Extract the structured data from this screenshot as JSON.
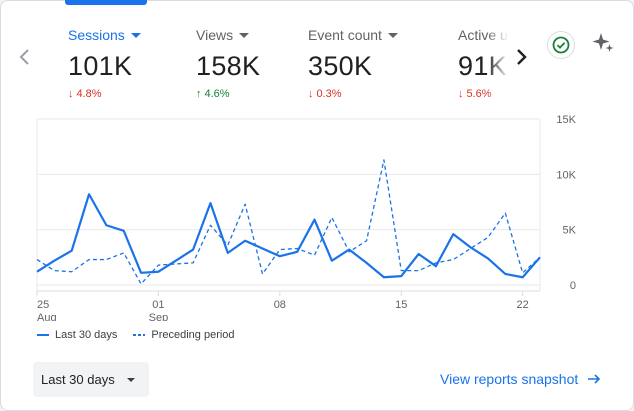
{
  "metrics": [
    {
      "label": "Sessions",
      "value": "101K",
      "delta": "4.8%",
      "direction": "down",
      "active": true
    },
    {
      "label": "Views",
      "value": "158K",
      "delta": "4.6%",
      "direction": "up",
      "active": false
    },
    {
      "label": "Event count",
      "value": "350K",
      "delta": "0.3%",
      "direction": "down",
      "active": false
    },
    {
      "label": "Active u",
      "value": "91K",
      "delta": "5.6%",
      "direction": "down",
      "active": false
    }
  ],
  "icons": {
    "prev": "chevron-left-icon",
    "next": "chevron-right-icon",
    "check": "check-circle-icon",
    "sparkle": "sparkle-icon",
    "arrow": "arrow-right-icon"
  },
  "colors": {
    "accent": "#1a73e8",
    "down": "#d93025",
    "up": "#188038",
    "check": "#188038"
  },
  "chart_data": {
    "type": "line",
    "x": [
      "Aug 25",
      "Aug 26",
      "Aug 27",
      "Aug 28",
      "Aug 29",
      "Aug 30",
      "Aug 31",
      "Sep 01",
      "Sep 02",
      "Sep 03",
      "Sep 04",
      "Sep 05",
      "Sep 06",
      "Sep 07",
      "Sep 08",
      "Sep 09",
      "Sep 10",
      "Sep 11",
      "Sep 12",
      "Sep 13",
      "Sep 14",
      "Sep 15",
      "Sep 16",
      "Sep 17",
      "Sep 18",
      "Sep 19",
      "Sep 20",
      "Sep 21",
      "Sep 22",
      "Sep 23"
    ],
    "series": [
      {
        "name": "Last 30 days",
        "style": "solid",
        "values": [
          1200,
          2200,
          3100,
          8200,
          5400,
          4900,
          1100,
          1200,
          2200,
          3200,
          7400,
          2900,
          4000,
          3300,
          2600,
          3000,
          5900,
          2200,
          3200,
          2000,
          700,
          800,
          2800,
          1700,
          4600,
          3400,
          2400,
          1000,
          700,
          2500
        ]
      },
      {
        "name": "Preceding period",
        "style": "dashed",
        "values": [
          2300,
          1300,
          1200,
          2300,
          2300,
          2900,
          100,
          1800,
          1900,
          2000,
          5400,
          3600,
          7300,
          1000,
          3200,
          3300,
          2700,
          6100,
          3000,
          4000,
          11300,
          1300,
          1300,
          2000,
          2300,
          3300,
          4300,
          6500,
          1100,
          2500
        ]
      }
    ],
    "ylim": [
      0,
      15000
    ],
    "yticks": [
      "15K",
      "10K",
      "5K",
      "0"
    ],
    "xticks": [
      {
        "top": "25",
        "bottom": "Aug"
      },
      {
        "top": "01",
        "bottom": "Sep"
      },
      {
        "top": "08",
        "bottom": ""
      },
      {
        "top": "15",
        "bottom": ""
      },
      {
        "top": "22",
        "bottom": ""
      }
    ],
    "grid": true,
    "legend_position": "bottom-left"
  },
  "footer": {
    "range_label": "Last 30 days",
    "link_label": "View reports snapshot"
  }
}
